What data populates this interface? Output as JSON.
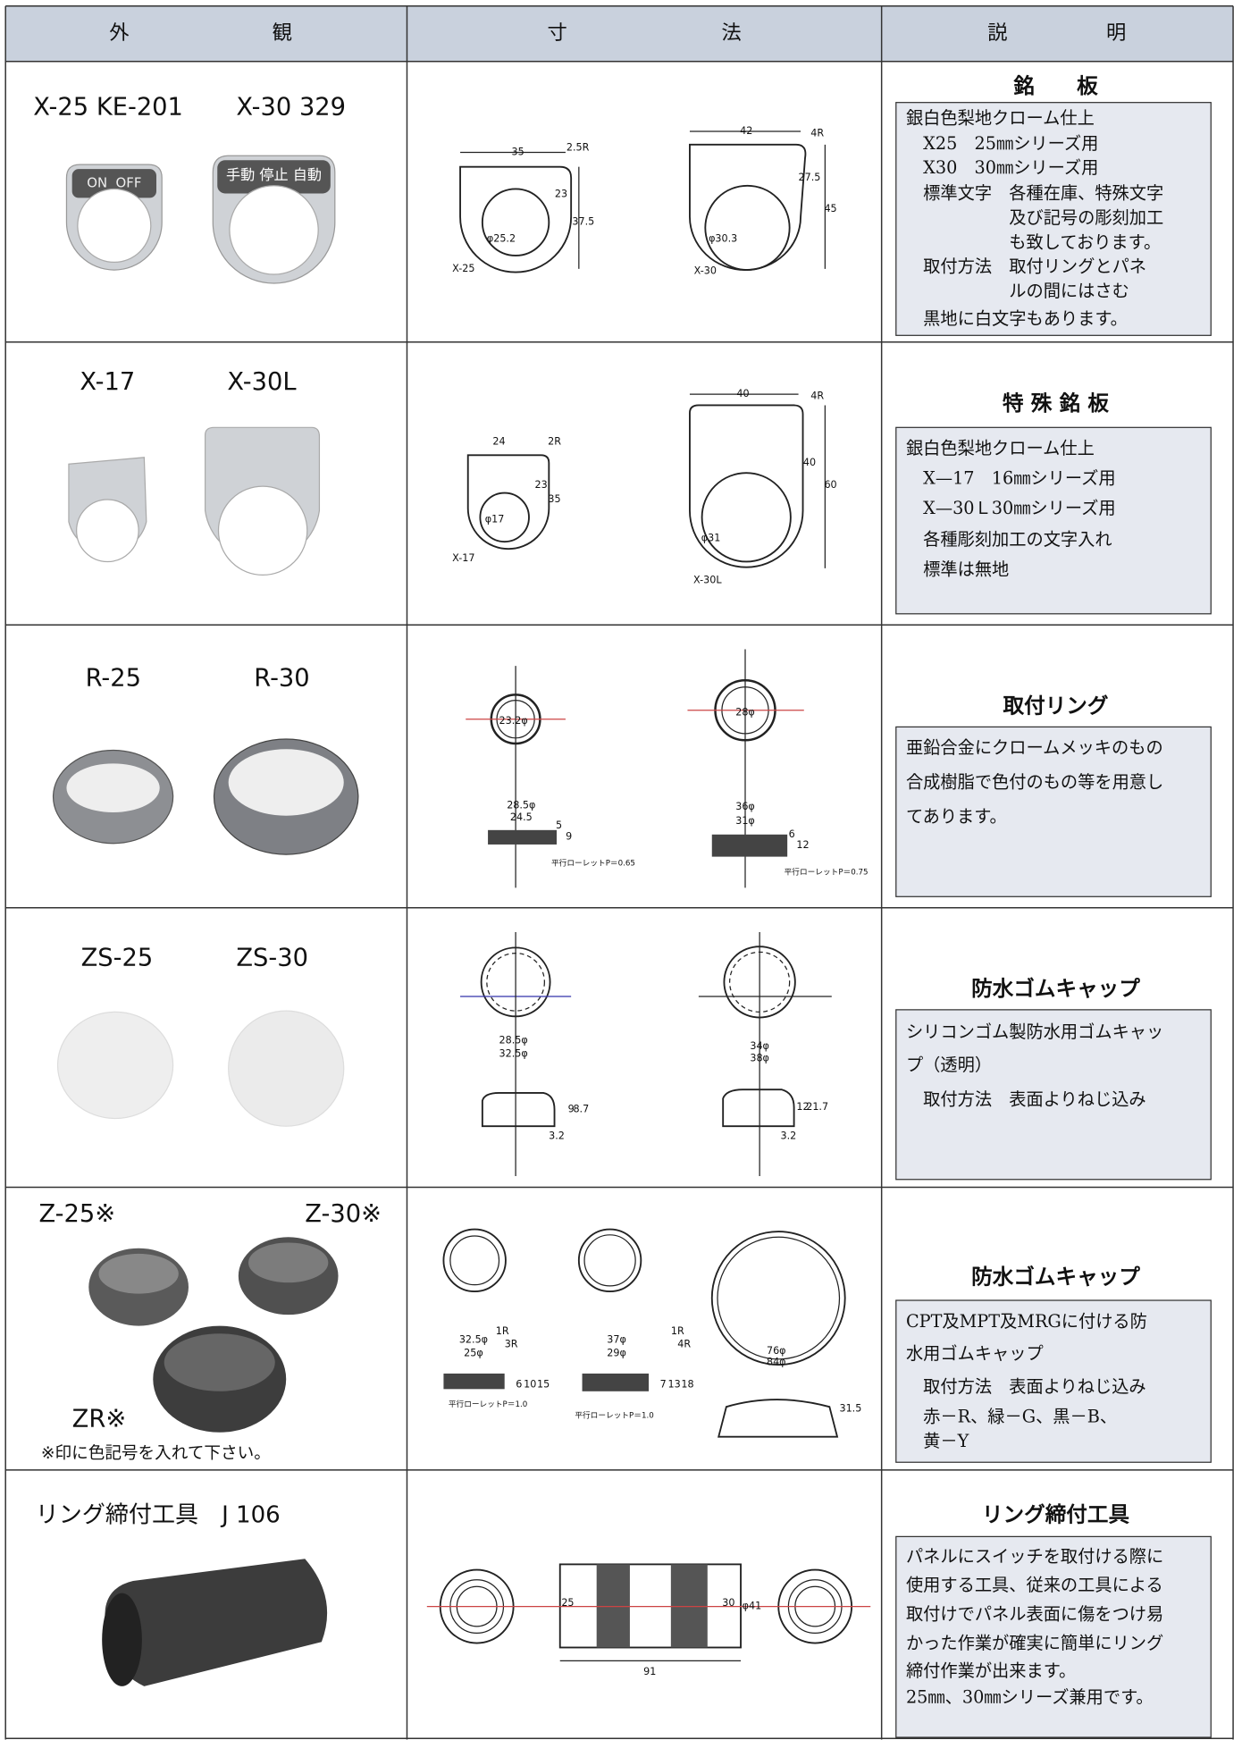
{
  "header": [
    "外観",
    "寸法",
    "説明"
  ],
  "rows": [
    {
      "labels": [
        "X-25 KE-201",
        "X-30 329"
      ],
      "photo_labels": [
        "ON  OFF",
        "手動 停止 自動"
      ],
      "drawing_labels": [
        "35",
        "2.5R",
        "23",
        "37.5",
        "φ25.2",
        "X-25",
        "42",
        "4R",
        "27.5",
        "45",
        "φ30.3",
        "X-30"
      ],
      "title": "銘　　板",
      "lines": [
        "銀白色梨地クローム仕上",
        "　X25　25㎜シリーズ用",
        "　X30　30㎜シリーズ用",
        "　標準文字　各種在庫、特殊文字",
        "　　　　　　及び記号の彫刻加工",
        "　　　　　　も致しております。",
        "　取付方法　取付リングとパネ",
        "　　　　　　ルの間にはさむ",
        "　黒地に白文字もあります。"
      ]
    },
    {
      "labels": [
        "X-17",
        "X-30L"
      ],
      "drawing_labels": [
        "24",
        "2R",
        "23",
        "35",
        "φ17",
        "X-17",
        "40",
        "4R",
        "40",
        "60",
        "φ31",
        "X-30L"
      ],
      "title": "特 殊 銘 板",
      "lines": [
        "銀白色梨地クローム仕上",
        "　X—17　16㎜シリーズ用",
        "　X—30Ｌ30㎜シリーズ用",
        "　各種彫刻加工の文字入れ",
        "　標準は無地"
      ]
    },
    {
      "labels": [
        "R-25",
        "R-30"
      ],
      "drawing_labels": [
        "23.2φ",
        "28φ",
        "28.5φ",
        "24.5",
        "9",
        "5",
        "36φ",
        "31φ",
        "12",
        "6",
        "平行ローレットP＝0.65",
        "平行ローレットP＝0.75"
      ],
      "title": "取付リング",
      "lines": [
        "亜鉛合金にクロームメッキのもの",
        "合成樹脂で色付のもの等を用意し",
        "てあります。"
      ]
    },
    {
      "labels": [
        "ZS-25",
        "ZS-30"
      ],
      "drawing_labels": [
        "28.5φ",
        "32.5φ",
        "9",
        "8.7",
        "3.2",
        "34φ",
        "38φ",
        "12",
        "21.7",
        "3.2"
      ],
      "title": "防水ゴムキャップ",
      "lines": [
        "シリコンゴム製防水用ゴムキャッ",
        "プ（透明）",
        "　取付方法　表面よりねじ込み"
      ]
    },
    {
      "labels": [
        "Z-25※",
        "Z-30※",
        "ZR※",
        "※印に色記号を入れて下さい。"
      ],
      "drawing_labels": [
        "32.5φ",
        "25φ",
        "1R",
        "3R",
        "6",
        "10",
        "15",
        "平行ローレットP＝1.0",
        "37φ",
        "29φ",
        "1R",
        "4R",
        "7",
        "13",
        "18",
        "平行ローレットP＝1.0",
        "76φ",
        "84φ",
        "31.5"
      ],
      "title": "防水ゴムキャップ",
      "lines": [
        "CPT及MPT及MRGに付ける防",
        "水用ゴムキャップ",
        "　取付方法　表面よりねじ込み",
        "　赤－R、緑－G、黒－B、",
        "　黄－Y"
      ]
    },
    {
      "labels": [
        "リング締付工具　J 106"
      ],
      "drawing_labels": [
        "25",
        "30",
        "φ41",
        "91"
      ],
      "title": "リング締付工具",
      "lines": [
        "パネルにスイッチを取付ける際に",
        "使用する工具、従来の工具による",
        "取付けでパネル表面に傷をつけ易",
        "かった作業が確実に簡単にリング",
        "締付作業が出来ます。",
        "25㎜、30㎜シリーズ兼用です。"
      ]
    }
  ]
}
